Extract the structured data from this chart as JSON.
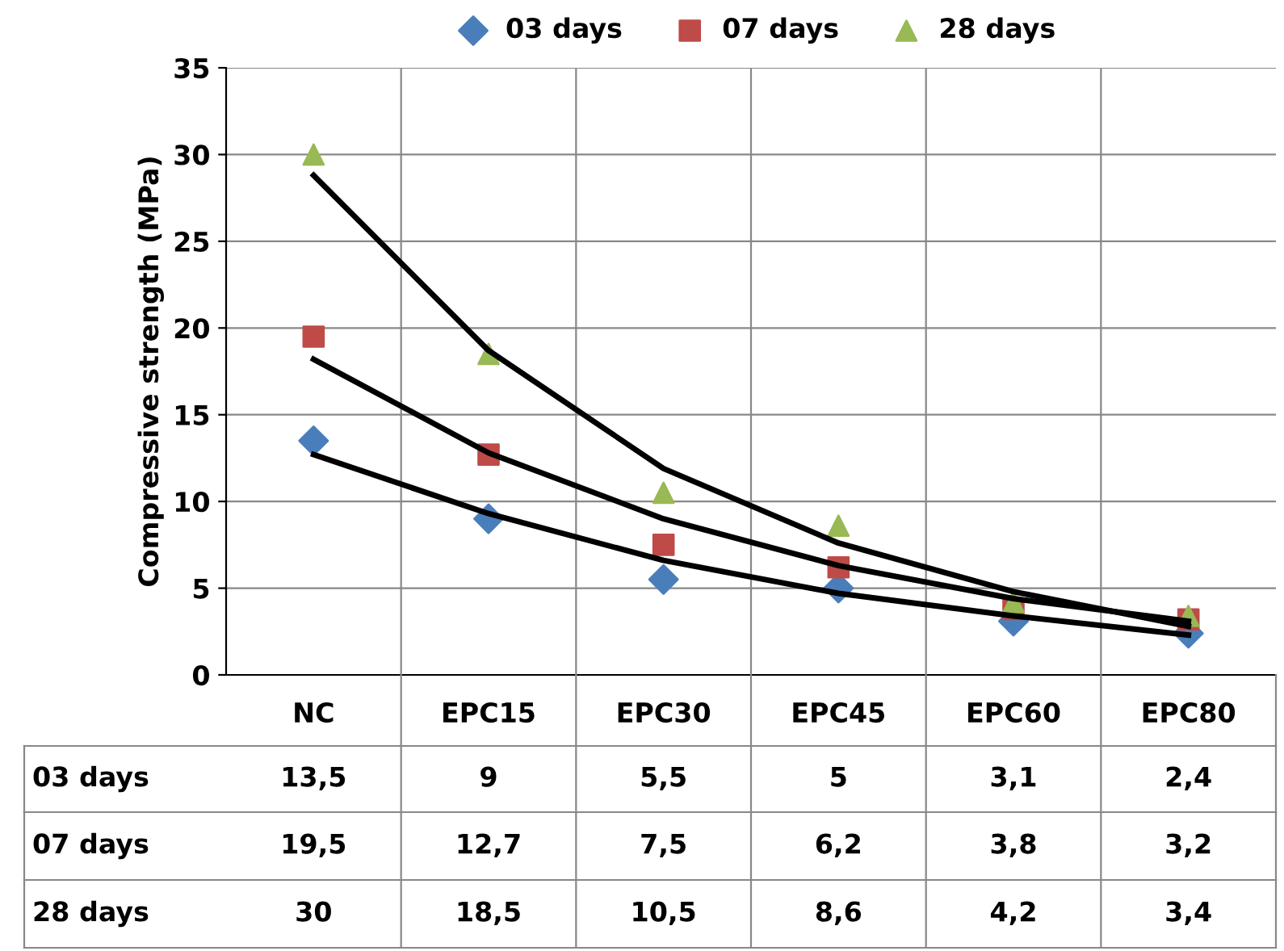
{
  "chart_data": {
    "type": "scatter",
    "ylabel": "Compressive strength (MPa)",
    "categories": [
      "NC",
      "EPC15",
      "EPC30",
      "EPC45",
      "EPC60",
      "EPC80"
    ],
    "series": [
      {
        "name": "03 days",
        "color": "#4a7ebb",
        "marker": "diamond",
        "values": [
          13.5,
          9,
          5.5,
          5,
          3.1,
          2.4
        ],
        "value_labels": [
          "13,5",
          "9",
          "5,5",
          "5",
          "3,1",
          "2,4"
        ]
      },
      {
        "name": "07 days",
        "color": "#be4b48",
        "marker": "square",
        "values": [
          19.5,
          12.7,
          7.5,
          6.2,
          3.8,
          3.2
        ],
        "value_labels": [
          "19,5",
          "12,7",
          "7,5",
          "6,2",
          "3,8",
          "3,2"
        ]
      },
      {
        "name": "28 days",
        "color": "#98b954",
        "marker": "triangle",
        "values": [
          30,
          18.5,
          10.5,
          8.6,
          4.2,
          3.4
        ],
        "value_labels": [
          "30",
          "18,5",
          "10,5",
          "8,6",
          "4,2",
          "3,4"
        ]
      },
      {
        "type": "line",
        "color": "#000000",
        "values": [
          12.7,
          9.3,
          6.6,
          4.7,
          3.4,
          2.3
        ]
      },
      {
        "type": "line",
        "color": "#000000",
        "values": [
          18.2,
          12.8,
          9.0,
          6.3,
          4.4,
          3.1
        ]
      },
      {
        "type": "line",
        "color": "#000000",
        "values": [
          28.8,
          18.7,
          11.9,
          7.6,
          4.8,
          2.8
        ]
      }
    ],
    "ylim": [
      0,
      35
    ],
    "yticks": [
      0,
      5,
      10,
      15,
      20,
      25,
      30,
      35
    ],
    "grid": "y",
    "legend": "top"
  }
}
